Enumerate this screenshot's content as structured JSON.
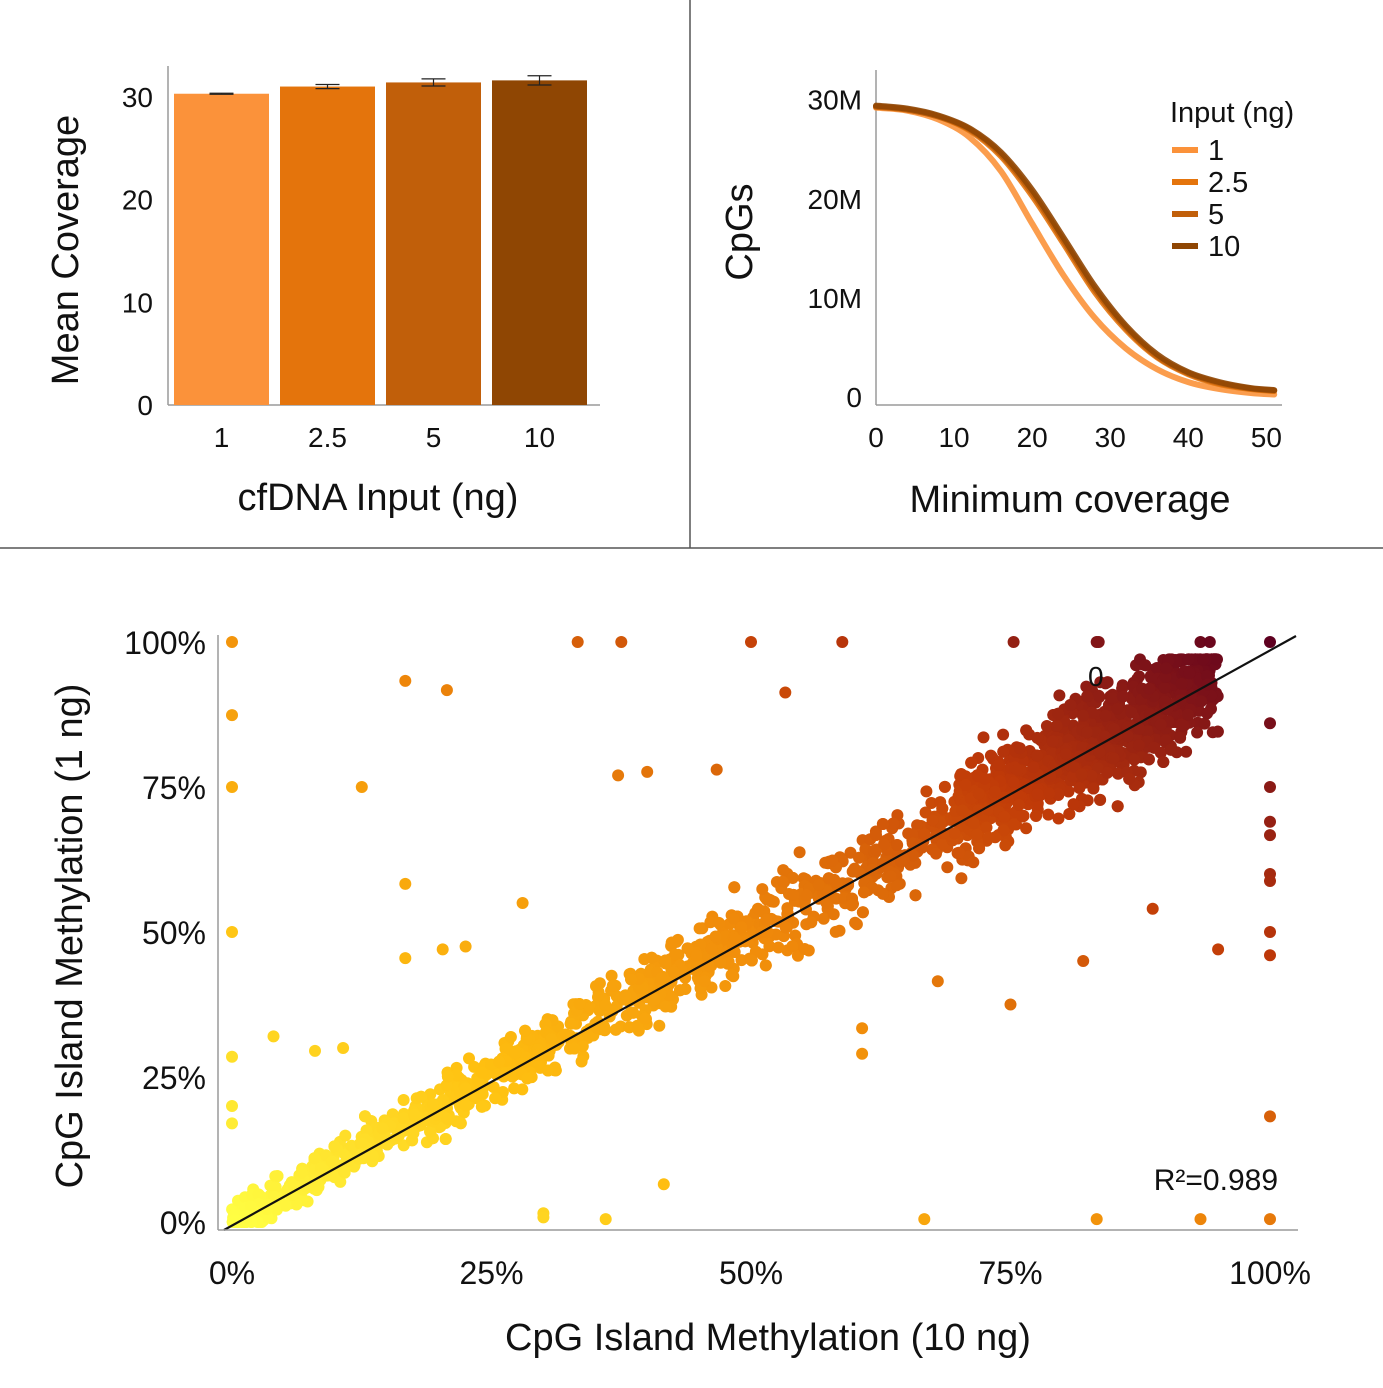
{
  "chart_data": [
    {
      "type": "bar",
      "xlabel": "cfDNA Input (ng)",
      "ylabel": "Mean Coverage",
      "ylim": [
        0,
        33
      ],
      "yticks": [
        "0",
        "10",
        "20",
        "30"
      ],
      "categories": [
        "1",
        "2.5",
        "5",
        "10"
      ],
      "values": [
        30.3,
        31.0,
        31.4,
        31.6
      ],
      "errors": [
        0.05,
        0.2,
        0.35,
        0.45
      ],
      "colors": [
        "#fb923a",
        "#e4740c",
        "#c15f0a",
        "#8f4603"
      ],
      "grid": false
    },
    {
      "type": "line",
      "xlabel": "Minimum coverage",
      "ylabel": "CpGs",
      "xlim": [
        0,
        52
      ],
      "ylim": [
        0,
        33
      ],
      "xticks": [
        "0",
        "10",
        "20",
        "30",
        "40",
        "50"
      ],
      "yticks": [
        "0",
        "10M",
        "20M",
        "30M"
      ],
      "legend_title": "Input (ng)",
      "legend_position": "top-right",
      "series": [
        {
          "name": "1",
          "color": "#fb923a",
          "x": [
            0,
            4,
            8,
            12,
            16,
            20,
            24,
            28,
            32,
            36,
            40,
            44,
            48,
            51
          ],
          "y": [
            29.2,
            28.9,
            28.0,
            26.2,
            22.8,
            17.5,
            12.3,
            8.0,
            4.9,
            2.8,
            1.5,
            0.8,
            0.4,
            0.25
          ]
        },
        {
          "name": "2.5",
          "color": "#e4740c",
          "x": [
            0,
            4,
            8,
            12,
            16,
            20,
            24,
            28,
            32,
            36,
            40,
            44,
            48,
            51
          ],
          "y": [
            29.3,
            29.0,
            28.3,
            26.9,
            24.3,
            20.3,
            15.5,
            10.6,
            6.8,
            4.0,
            2.3,
            1.3,
            0.8,
            0.6
          ]
        },
        {
          "name": "5",
          "color": "#c15f0a",
          "x": [
            0,
            4,
            8,
            12,
            16,
            20,
            24,
            28,
            32,
            36,
            40,
            44,
            48,
            51
          ],
          "y": [
            29.3,
            29.0,
            28.3,
            27.0,
            24.5,
            20.6,
            15.8,
            10.9,
            7.0,
            4.1,
            2.4,
            1.4,
            0.85,
            0.65
          ]
        },
        {
          "name": "10",
          "color": "#8f4603",
          "x": [
            0,
            4,
            8,
            12,
            16,
            20,
            24,
            28,
            32,
            36,
            40,
            44,
            48,
            51
          ],
          "y": [
            29.4,
            29.1,
            28.4,
            27.1,
            24.7,
            20.9,
            16.1,
            11.2,
            7.2,
            4.3,
            2.5,
            1.5,
            0.9,
            0.7
          ]
        }
      ],
      "grid": false
    },
    {
      "type": "scatter",
      "xlabel": "CpG Island Methylation (10 ng)",
      "ylabel": "CpG Island Methylation (1 ng)",
      "xlim": [
        0,
        100
      ],
      "ylim": [
        0,
        100
      ],
      "xticks": [
        "0%",
        "25%",
        "50%",
        "75%",
        "100%"
      ],
      "yticks": [
        "0%",
        "25%",
        "50%",
        "75%",
        "100%"
      ],
      "annotation": "R²=0.989",
      "stray_label": "0",
      "fit_line": {
        "x": [
          0,
          100
        ],
        "y": [
          0,
          100
        ]
      },
      "color_scale": [
        "#ffff44",
        "#ffc010",
        "#f08a0a",
        "#c03a08",
        "#5e0020"
      ],
      "cloud_description": "dense point cloud along the diagonal; approx. 2500 points",
      "outliers": [
        [
          0,
          100
        ],
        [
          0,
          87.4
        ],
        [
          0,
          75.0
        ],
        [
          0,
          50.0
        ],
        [
          0,
          28.5
        ],
        [
          0,
          20.0
        ],
        [
          0,
          17.0
        ],
        [
          16.7,
          93.3
        ],
        [
          16.7,
          58.3
        ],
        [
          16.7,
          45.5
        ],
        [
          20.7,
          91.7
        ],
        [
          12.5,
          75.0
        ],
        [
          33.3,
          100
        ],
        [
          37.5,
          100
        ],
        [
          50.0,
          100
        ],
        [
          58.8,
          100
        ],
        [
          75.3,
          100
        ],
        [
          83.3,
          100
        ],
        [
          83.5,
          100
        ],
        [
          93.3,
          100
        ],
        [
          94.2,
          100
        ],
        [
          100,
          100
        ],
        [
          100,
          86.0
        ],
        [
          100,
          75.0
        ],
        [
          100,
          69.0
        ],
        [
          100,
          66.7
        ],
        [
          100,
          60.0
        ],
        [
          100,
          58.8
        ],
        [
          100,
          50.0
        ],
        [
          100,
          46.0
        ],
        [
          100,
          18.2
        ],
        [
          100,
          0.5
        ],
        [
          37.2,
          77.0
        ],
        [
          40.0,
          77.6
        ],
        [
          46.7,
          78.0
        ],
        [
          53.3,
          91.3
        ],
        [
          36.0,
          0.5
        ],
        [
          30.0,
          1.5
        ],
        [
          30.0,
          0.8
        ],
        [
          66.7,
          0.5
        ],
        [
          83.3,
          0.5
        ],
        [
          93.3,
          0.5
        ],
        [
          41.6,
          6.5
        ],
        [
          75.0,
          37.5
        ],
        [
          68.0,
          41.5
        ],
        [
          60.7,
          33.4
        ],
        [
          60.7,
          29.0
        ],
        [
          88.7,
          54.0
        ],
        [
          95.0,
          47.0
        ],
        [
          82.0,
          45.0
        ],
        [
          4.0,
          32.0
        ],
        [
          10.7,
          30.0
        ],
        [
          8.0,
          29.5
        ],
        [
          20.3,
          47.0
        ],
        [
          22.5,
          47.5
        ],
        [
          28.0,
          55.0
        ]
      ]
    }
  ]
}
